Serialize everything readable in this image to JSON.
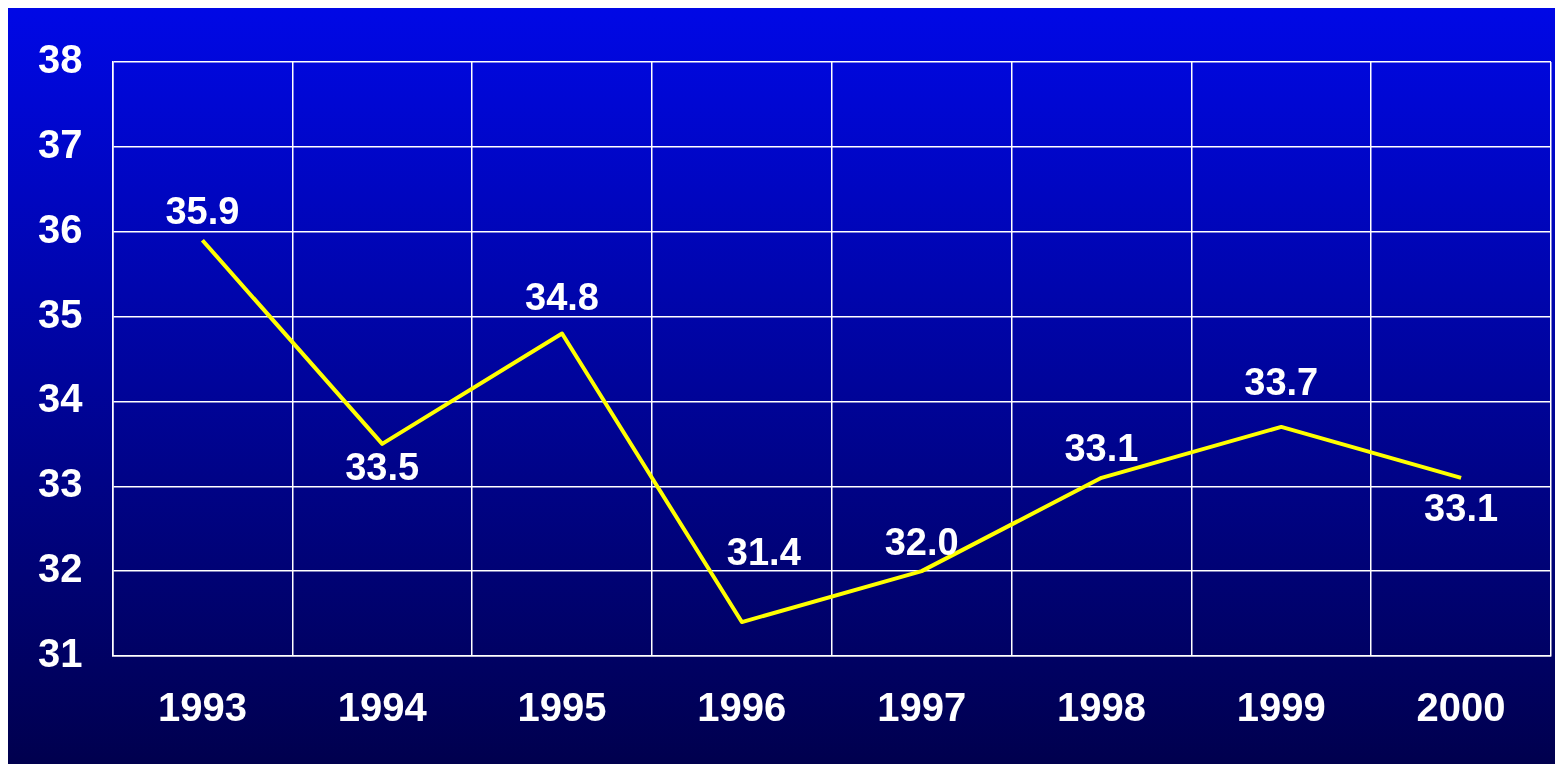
{
  "chart_data": {
    "type": "line",
    "categories": [
      "1993",
      "1994",
      "1995",
      "1996",
      "1997",
      "1998",
      "1999",
      "2000"
    ],
    "series": [
      {
        "color": "#ffff00",
        "values": [
          35.9,
          33.5,
          34.8,
          31.4,
          32.0,
          33.1,
          33.7,
          33.1
        ],
        "value_labels": [
          "35.9",
          "33.5",
          "34.8",
          "31.4",
          "32.0",
          "33.1",
          "33.7",
          "33.1"
        ]
      }
    ],
    "ylim": [
      31,
      38
    ],
    "yticks": [
      31,
      32,
      33,
      34,
      35,
      36,
      37,
      38
    ],
    "grid": true,
    "legend": false,
    "marker": "none",
    "line_style": "solid"
  }
}
